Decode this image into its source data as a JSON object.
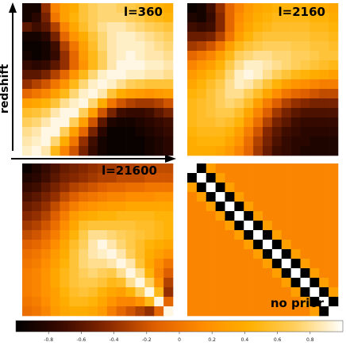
{
  "chart_data": [
    {
      "type": "heatmap",
      "panel_label": "l=360",
      "n": 16,
      "values": [
        [
          -0.9,
          -0.9,
          -0.4,
          0.1,
          0.3,
          0.4,
          0.6,
          0.7,
          0.75,
          0.75,
          0.7,
          0.65,
          0.6,
          0.5,
          0.45,
          0.4
        ],
        [
          -0.9,
          -0.8,
          -0.5,
          0.0,
          0.3,
          0.45,
          0.6,
          0.7,
          0.75,
          0.75,
          0.75,
          0.7,
          0.65,
          0.55,
          0.5,
          0.45
        ],
        [
          -0.6,
          -0.7,
          -0.6,
          -0.3,
          0.1,
          0.35,
          0.55,
          0.7,
          0.8,
          0.85,
          0.85,
          0.8,
          0.75,
          0.7,
          0.65,
          0.6
        ],
        [
          -0.9,
          -0.9,
          -0.8,
          -0.5,
          -0.1,
          0.2,
          0.4,
          0.6,
          0.75,
          0.85,
          0.9,
          0.9,
          0.85,
          0.8,
          0.75,
          0.7
        ],
        [
          -0.95,
          -0.95,
          -0.9,
          -0.7,
          -0.3,
          0.0,
          0.3,
          0.55,
          0.75,
          0.85,
          0.9,
          0.9,
          0.9,
          0.85,
          0.8,
          0.75
        ],
        [
          -0.9,
          -0.95,
          -0.9,
          -0.75,
          -0.4,
          -0.1,
          0.25,
          0.5,
          0.7,
          0.85,
          0.9,
          0.95,
          0.9,
          0.85,
          0.85,
          0.8
        ],
        [
          -0.75,
          -0.8,
          -0.75,
          -0.6,
          -0.4,
          -0.1,
          0.2,
          0.5,
          0.7,
          0.85,
          0.95,
          0.95,
          0.95,
          0.9,
          0.9,
          0.85
        ],
        [
          -0.6,
          -0.6,
          -0.5,
          -0.3,
          -0.1,
          0.2,
          0.5,
          0.75,
          0.9,
          0.95,
          0.95,
          0.9,
          0.9,
          0.85,
          0.85,
          0.8
        ],
        [
          -0.4,
          -0.3,
          -0.2,
          0.0,
          0.2,
          0.5,
          0.75,
          0.9,
          0.95,
          0.9,
          0.8,
          0.7,
          0.65,
          0.6,
          0.6,
          0.6
        ],
        [
          -0.1,
          0.0,
          0.1,
          0.3,
          0.5,
          0.75,
          0.9,
          0.95,
          0.85,
          0.6,
          0.4,
          0.3,
          0.25,
          0.2,
          0.25,
          0.3
        ],
        [
          0.3,
          0.35,
          0.45,
          0.6,
          0.8,
          0.9,
          0.95,
          0.75,
          0.4,
          0.0,
          -0.2,
          -0.3,
          -0.35,
          -0.35,
          -0.3,
          -0.2
        ],
        [
          0.55,
          0.6,
          0.7,
          0.85,
          0.95,
          0.95,
          0.7,
          0.3,
          -0.2,
          -0.5,
          -0.7,
          -0.75,
          -0.75,
          -0.7,
          -0.6,
          -0.5
        ],
        [
          0.7,
          0.75,
          0.85,
          0.95,
          0.95,
          0.7,
          0.3,
          -0.2,
          -0.6,
          -0.85,
          -0.9,
          -0.9,
          -0.85,
          -0.8,
          -0.75,
          -0.7
        ],
        [
          0.8,
          0.85,
          0.95,
          0.95,
          0.7,
          0.3,
          -0.1,
          -0.5,
          -0.8,
          -0.95,
          -0.95,
          -0.95,
          -0.9,
          -0.85,
          -0.8,
          -0.75
        ],
        [
          0.85,
          0.9,
          0.95,
          0.75,
          0.4,
          0.0,
          -0.4,
          -0.7,
          -0.9,
          -0.95,
          -0.95,
          -0.95,
          -0.95,
          -0.9,
          -0.85,
          -0.8
        ],
        [
          0.9,
          0.95,
          0.85,
          0.5,
          0.1,
          -0.2,
          -0.5,
          -0.75,
          -0.9,
          -0.95,
          -0.95,
          -0.95,
          -0.95,
          -0.9,
          -0.85,
          -0.8
        ]
      ]
    },
    {
      "type": "heatmap",
      "panel_label": "l=2160",
      "n": 16,
      "values": [
        [
          -0.95,
          -0.9,
          -0.7,
          -0.4,
          -0.1,
          0.1,
          0.25,
          0.35,
          0.4,
          0.45,
          0.45,
          0.45,
          0.45,
          0.4,
          0.4,
          0.35
        ],
        [
          -0.85,
          -0.9,
          -0.75,
          -0.45,
          -0.1,
          0.15,
          0.3,
          0.4,
          0.45,
          0.5,
          0.5,
          0.5,
          0.5,
          0.45,
          0.45,
          0.4
        ],
        [
          -0.7,
          -0.75,
          -0.7,
          -0.45,
          -0.1,
          0.2,
          0.35,
          0.45,
          0.5,
          0.55,
          0.55,
          0.55,
          0.55,
          0.5,
          0.5,
          0.45
        ],
        [
          -0.55,
          -0.55,
          -0.5,
          -0.3,
          0.0,
          0.3,
          0.45,
          0.55,
          0.6,
          0.6,
          0.6,
          0.6,
          0.6,
          0.55,
          0.55,
          0.5
        ],
        [
          -0.35,
          -0.3,
          -0.2,
          0.0,
          0.3,
          0.5,
          0.6,
          0.65,
          0.7,
          0.7,
          0.7,
          0.65,
          0.65,
          0.6,
          0.6,
          0.55
        ],
        [
          -0.1,
          0.0,
          0.1,
          0.3,
          0.5,
          0.7,
          0.75,
          0.8,
          0.8,
          0.75,
          0.75,
          0.7,
          0.7,
          0.65,
          0.6,
          0.6
        ],
        [
          0.1,
          0.2,
          0.3,
          0.45,
          0.65,
          0.8,
          0.9,
          0.9,
          0.85,
          0.8,
          0.75,
          0.7,
          0.65,
          0.6,
          0.55,
          0.5
        ],
        [
          0.25,
          0.35,
          0.45,
          0.55,
          0.75,
          0.9,
          0.95,
          0.9,
          0.8,
          0.7,
          0.6,
          0.5,
          0.45,
          0.4,
          0.35,
          0.3
        ],
        [
          0.35,
          0.45,
          0.55,
          0.65,
          0.8,
          0.9,
          0.85,
          0.75,
          0.6,
          0.45,
          0.3,
          0.2,
          0.15,
          0.1,
          0.05,
          0.05
        ],
        [
          0.45,
          0.5,
          0.6,
          0.7,
          0.8,
          0.8,
          0.7,
          0.55,
          0.35,
          0.15,
          0.0,
          -0.1,
          -0.15,
          -0.2,
          -0.25,
          -0.25
        ],
        [
          0.5,
          0.55,
          0.6,
          0.7,
          0.75,
          0.7,
          0.55,
          0.3,
          0.05,
          -0.15,
          -0.3,
          -0.4,
          -0.45,
          -0.5,
          -0.5,
          -0.5
        ],
        [
          0.5,
          0.55,
          0.6,
          0.65,
          0.65,
          0.55,
          0.35,
          0.1,
          -0.15,
          -0.35,
          -0.5,
          -0.6,
          -0.65,
          -0.65,
          -0.65,
          -0.65
        ],
        [
          0.5,
          0.55,
          0.55,
          0.6,
          0.55,
          0.45,
          0.2,
          -0.05,
          -0.3,
          -0.5,
          -0.6,
          -0.7,
          -0.75,
          -0.75,
          -0.75,
          -0.75
        ],
        [
          0.45,
          0.5,
          0.5,
          0.5,
          0.45,
          0.3,
          0.05,
          -0.2,
          -0.45,
          -0.6,
          -0.7,
          -0.75,
          -0.8,
          -0.8,
          -0.8,
          -0.8
        ],
        [
          0.4,
          0.45,
          0.45,
          0.45,
          0.35,
          0.2,
          -0.05,
          -0.3,
          -0.5,
          -0.65,
          -0.75,
          -0.8,
          -0.8,
          -0.85,
          -0.85,
          -0.85
        ],
        [
          0.4,
          0.4,
          0.4,
          0.35,
          0.25,
          0.1,
          -0.1,
          -0.35,
          -0.55,
          -0.7,
          -0.75,
          -0.8,
          -0.85,
          -0.85,
          -0.85,
          -0.85
        ]
      ]
    },
    {
      "type": "heatmap",
      "panel_label": "l=21600",
      "n": 16,
      "values": [
        [
          -0.95,
          -0.85,
          -0.75,
          -0.65,
          -0.55,
          -0.5,
          -0.45,
          -0.4,
          -0.35,
          -0.35,
          -0.3,
          -0.3,
          -0.25,
          -0.25,
          -0.25,
          -0.25
        ],
        [
          -0.85,
          -0.8,
          -0.7,
          -0.6,
          -0.5,
          -0.45,
          -0.4,
          -0.35,
          -0.3,
          -0.3,
          -0.25,
          -0.25,
          -0.25,
          -0.2,
          -0.2,
          -0.2
        ],
        [
          -0.75,
          -0.7,
          -0.6,
          -0.5,
          -0.4,
          -0.3,
          -0.25,
          -0.2,
          -0.15,
          -0.1,
          -0.1,
          -0.05,
          -0.05,
          0.0,
          0.0,
          0.0
        ],
        [
          -0.65,
          -0.6,
          -0.5,
          -0.4,
          -0.25,
          -0.15,
          -0.05,
          0.0,
          0.05,
          0.1,
          0.1,
          0.15,
          0.15,
          0.15,
          0.2,
          0.2
        ],
        [
          -0.55,
          -0.5,
          -0.4,
          -0.25,
          -0.1,
          0.05,
          0.15,
          0.2,
          0.25,
          0.3,
          0.3,
          0.35,
          0.35,
          0.35,
          0.35,
          0.35
        ],
        [
          -0.45,
          -0.4,
          -0.3,
          -0.15,
          0.05,
          0.25,
          0.35,
          0.4,
          0.45,
          0.45,
          0.5,
          0.5,
          0.5,
          0.5,
          0.45,
          0.45
        ],
        [
          -0.35,
          -0.3,
          -0.2,
          -0.05,
          0.15,
          0.35,
          0.55,
          0.6,
          0.6,
          0.6,
          0.6,
          0.6,
          0.55,
          0.55,
          0.5,
          0.45
        ],
        [
          -0.25,
          -0.2,
          -0.1,
          0.05,
          0.25,
          0.45,
          0.65,
          0.8,
          0.8,
          0.75,
          0.7,
          0.65,
          0.6,
          0.55,
          0.5,
          0.45
        ],
        [
          -0.15,
          -0.1,
          0.0,
          0.15,
          0.35,
          0.55,
          0.7,
          0.85,
          0.95,
          0.85,
          0.75,
          0.65,
          0.55,
          0.45,
          0.4,
          0.35
        ],
        [
          -0.05,
          0.0,
          0.1,
          0.25,
          0.4,
          0.6,
          0.75,
          0.85,
          0.9,
          0.95,
          0.85,
          0.7,
          0.55,
          0.4,
          0.3,
          0.2
        ],
        [
          0.0,
          0.05,
          0.15,
          0.3,
          0.45,
          0.6,
          0.75,
          0.8,
          0.8,
          0.85,
          0.95,
          0.85,
          0.6,
          0.35,
          0.15,
          0.0
        ],
        [
          0.05,
          0.1,
          0.2,
          0.35,
          0.5,
          0.6,
          0.7,
          0.75,
          0.7,
          0.65,
          0.8,
          0.95,
          0.8,
          0.45,
          0.1,
          -0.15
        ],
        [
          0.05,
          0.1,
          0.2,
          0.35,
          0.5,
          0.6,
          0.65,
          0.65,
          0.6,
          0.5,
          0.55,
          0.8,
          0.95,
          0.7,
          0.2,
          -0.3
        ],
        [
          0.05,
          0.1,
          0.2,
          0.3,
          0.45,
          0.55,
          0.6,
          0.55,
          0.45,
          0.35,
          0.3,
          0.45,
          0.7,
          0.95,
          0.5,
          -0.4
        ],
        [
          0.0,
          0.05,
          0.15,
          0.3,
          0.4,
          0.5,
          0.5,
          0.45,
          0.35,
          0.2,
          0.1,
          0.1,
          0.2,
          0.5,
          0.95,
          -0.1
        ],
        [
          -0.05,
          0.0,
          0.1,
          0.25,
          0.35,
          0.4,
          0.4,
          0.35,
          0.25,
          0.05,
          -0.1,
          -0.2,
          -0.3,
          -0.4,
          -0.1,
          0.95
        ]
      ]
    },
    {
      "type": "heatmap",
      "panel_label": "no prior",
      "n": 16,
      "values": [
        [
          0.1,
          0.1,
          0.1,
          0.1,
          0.1,
          0.1,
          0.1,
          0.1,
          0.1,
          0.1,
          0.1,
          0.1,
          0.1,
          0.1,
          0.1,
          0.1
        ],
        [
          0.1,
          0.1,
          0.1,
          0.1,
          0.1,
          0.1,
          0.1,
          0.1,
          0.1,
          0.1,
          0.1,
          0.1,
          0.1,
          0.1,
          0.1,
          0.1
        ],
        [
          0.1,
          0.1,
          0.1,
          0.1,
          0.1,
          0.1,
          0.1,
          0.1,
          0.1,
          0.1,
          0.1,
          0.1,
          0.1,
          0.1,
          0.1,
          0.1
        ],
        [
          0.1,
          0.1,
          0.1,
          0.1,
          0.1,
          0.1,
          0.1,
          0.1,
          0.1,
          0.1,
          0.1,
          0.1,
          0.1,
          0.1,
          0.1,
          0.1
        ],
        [
          0.1,
          0.1,
          0.1,
          0.1,
          0.1,
          0.1,
          0.1,
          0.1,
          0.1,
          0.1,
          0.1,
          0.1,
          0.1,
          0.1,
          0.1,
          0.1
        ],
        [
          0.1,
          0.1,
          0.1,
          0.1,
          0.1,
          0.1,
          0.1,
          0.1,
          0.1,
          0.1,
          0.1,
          0.1,
          0.1,
          0.1,
          0.1,
          0.1
        ],
        [
          0.1,
          0.1,
          0.1,
          0.1,
          0.1,
          0.1,
          0.1,
          0.1,
          0.1,
          0.1,
          0.1,
          0.1,
          0.1,
          0.1,
          0.1,
          0.1
        ],
        [
          0.1,
          0.1,
          0.1,
          0.1,
          0.1,
          0.1,
          0.1,
          0.1,
          0.1,
          0.1,
          0.1,
          0.1,
          0.1,
          0.1,
          0.1,
          0.1
        ],
        [
          0.1,
          0.1,
          0.1,
          0.1,
          0.1,
          0.1,
          0.1,
          0.1,
          0.1,
          0.1,
          0.1,
          0.1,
          0.1,
          0.1,
          0.1,
          0.1
        ],
        [
          0.1,
          0.1,
          0.1,
          0.1,
          0.1,
          0.1,
          0.1,
          0.1,
          0.1,
          0.1,
          0.1,
          0.1,
          0.1,
          0.1,
          0.1,
          0.1
        ],
        [
          0.1,
          0.1,
          0.1,
          0.1,
          0.1,
          0.1,
          0.1,
          0.1,
          0.1,
          0.1,
          0.1,
          0.1,
          0.1,
          0.1,
          0.1,
          0.1
        ],
        [
          0.1,
          0.1,
          0.1,
          0.1,
          0.1,
          0.1,
          0.1,
          0.1,
          0.1,
          0.1,
          0.1,
          0.1,
          0.1,
          0.1,
          0.1,
          0.1
        ],
        [
          0.1,
          0.1,
          0.1,
          0.1,
          0.1,
          0.1,
          0.1,
          0.1,
          0.1,
          0.1,
          0.1,
          0.1,
          0.1,
          0.1,
          0.1,
          0.1
        ],
        [
          0.1,
          0.1,
          0.1,
          0.1,
          0.1,
          0.1,
          0.1,
          0.1,
          0.1,
          0.1,
          0.1,
          0.1,
          0.1,
          0.1,
          0.1,
          0.1
        ],
        [
          0.1,
          0.1,
          0.1,
          0.1,
          0.1,
          0.1,
          0.1,
          0.1,
          0.1,
          0.1,
          0.1,
          0.1,
          0.1,
          0.1,
          0.1,
          0.1
        ],
        [
          0.1,
          0.1,
          0.1,
          0.1,
          0.1,
          0.1,
          0.1,
          0.1,
          0.1,
          0.1,
          0.1,
          0.1,
          0.1,
          0.1,
          0.1,
          0.1
        ]
      ],
      "diagonal_band": {
        "center_value": 1.0,
        "adjacent_value": -1.0,
        "next_value": 0.3,
        "checker_cells_value": 0.35
      }
    }
  ],
  "axes": {
    "y_label": "redshift",
    "x_arrow": true
  },
  "colorbar": {
    "ticks": [
      -0.8,
      -0.6,
      -0.4,
      -0.2,
      0,
      0.2,
      0.4,
      0.6,
      0.8
    ],
    "vmin": -1.0,
    "vmax": 1.0,
    "colormap": [
      "#000000",
      "#3b0a00",
      "#8b2a00",
      "#e06000",
      "#ff8c00",
      "#ffb000",
      "#ffd060",
      "#ffffff"
    ]
  }
}
